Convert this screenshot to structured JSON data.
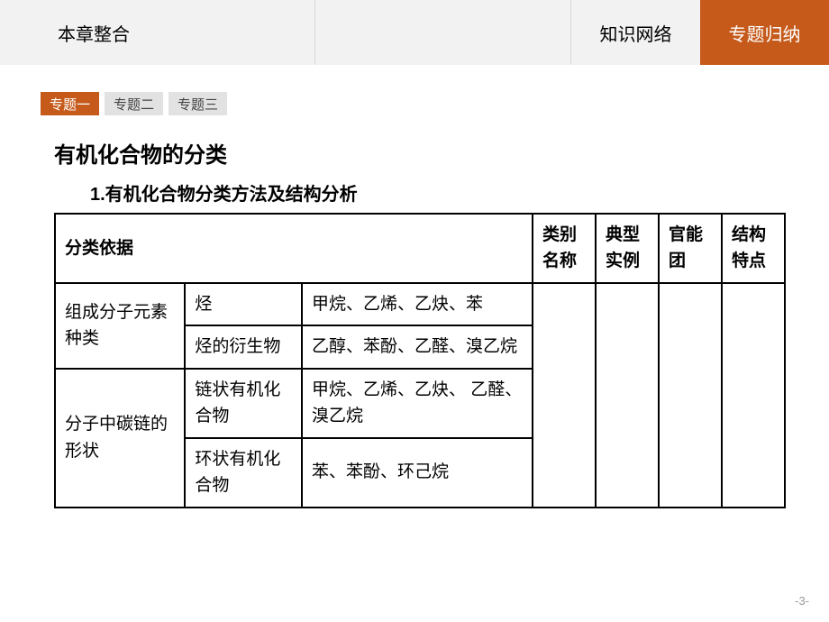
{
  "colors": {
    "accent": "#c55a1b",
    "topbar_bg": "#f2f2f2",
    "topbar_border": "#d9d9d9",
    "subtab_bg": "#e2e2e2",
    "table_border": "#000000",
    "text": "#000000",
    "page_num": "#9a9a9a"
  },
  "topbar": {
    "title": "本章整合",
    "nav": [
      {
        "label": "知识网络",
        "active": false
      },
      {
        "label": "专题归纳",
        "active": true
      }
    ]
  },
  "sub_tabs": [
    {
      "label": "专题一",
      "active": true
    },
    {
      "label": "专题二",
      "active": false
    },
    {
      "label": "专题三",
      "active": false
    }
  ],
  "content": {
    "heading": "有机化合物的分类",
    "subtitle": "1.有机化合物分类方法及结构分析"
  },
  "table": {
    "header": {
      "basis": "分类依据",
      "category_name": "类别名称",
      "typical_examples": "典型实例",
      "functional_group": "官能团",
      "structural_features": "结构特点"
    },
    "rows": [
      {
        "group_label": "组成分子元素种类",
        "items": [
          {
            "category": "烃",
            "examples": "甲烷、乙烯、乙炔、苯"
          },
          {
            "category": "烃的衍生物",
            "examples": "乙醇、苯酚、乙醛、溴乙烷"
          }
        ]
      },
      {
        "group_label": "分子中碳链的形状",
        "items": [
          {
            "category": "链状有机化合物",
            "examples": "甲烷、乙烯、乙炔、\n乙醛、溴乙烷"
          },
          {
            "category": "环状有机化合物",
            "examples": "苯、苯酚、环己烷"
          }
        ]
      }
    ]
  },
  "page_number": "-3-"
}
